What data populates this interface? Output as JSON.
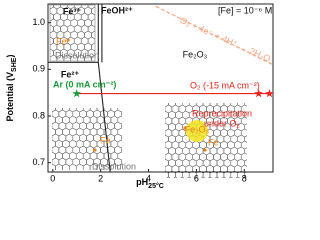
{
  "chart_data": {
    "type": "line",
    "x_label": "pH",
    "x_label_sub": "25°C",
    "y_label": "Potential (V",
    "y_label_sub": "SHE",
    "y_label_end": ")",
    "xlim": [
      -0.2,
      9.2
    ],
    "ylim": [
      0.68,
      1.04
    ],
    "xticks": [
      0,
      2,
      4,
      6,
      8
    ],
    "yticks": [
      0.7,
      0.8,
      0.9,
      {
        "value": 1.0,
        "label": "1.0"
      }
    ],
    "series": [
      {
        "color": "#222222",
        "x": [
          -0.2,
          1.9
        ],
        "values": [
          0.915,
          0.915
        ]
      },
      {
        "color": "#222222",
        "x": [
          1.9,
          1.9
        ],
        "values": [
          1.04,
          0.915
        ]
      },
      {
        "color": "#222222",
        "x": [
          2.05,
          2.05
        ],
        "values": [
          1.04,
          0.915
        ]
      },
      {
        "color": "#222222",
        "x": [
          1.9,
          2.4
        ],
        "values": [
          0.915,
          0.68
        ]
      },
      {
        "color": "#e8231c",
        "x": [
          1.0,
          9.1
        ],
        "values": [
          0.848,
          0.848
        ]
      },
      {
        "color": "#f4a582",
        "x": [
          4.3,
          9.2
        ],
        "values": [
          1.035,
          0.91
        ],
        "dashed": true
      }
    ],
    "points": [
      {
        "x": 1.0,
        "y": 0.848,
        "color": "#1a9a3a"
      },
      {
        "x": 8.6,
        "y": 0.848,
        "color": "#e8231c"
      },
      {
        "x": 9.05,
        "y": 0.848,
        "color": "#e8231c"
      }
    ],
    "annotations": [
      "Fe³⁺",
      "FeOH²⁺",
      "Fe²⁺",
      "Fe₂O₃",
      "[Fe] = 10⁻⁶ M",
      "O₂ + 4e⁻ + 4H⁺ → 2H₂O",
      "Ar (0 mA cm⁻²)",
      "O₂ (-15 mA cm⁻²)",
      "Dissolution",
      "Dissolution",
      "Reprecipitation",
      "under O₂",
      "Fe",
      "Fe",
      "Fe",
      "Fe₂O₃"
    ]
  }
}
